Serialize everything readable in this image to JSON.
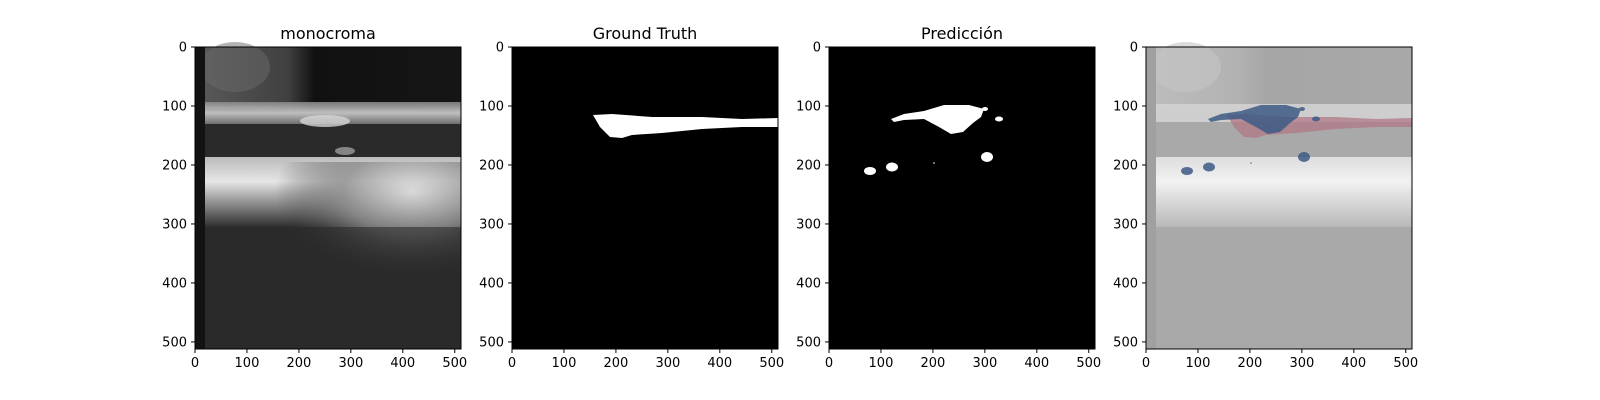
{
  "figure": {
    "panels": [
      {
        "title": "monocroma",
        "x_ticks": [
          "0",
          "100",
          "200",
          "300",
          "400",
          "500"
        ],
        "y_ticks": [
          "0",
          "100",
          "200",
          "300",
          "400",
          "500"
        ]
      },
      {
        "title": "Ground Truth",
        "x_ticks": [
          "0",
          "100",
          "200",
          "300",
          "400",
          "500"
        ],
        "y_ticks": [
          "0",
          "100",
          "200",
          "300",
          "400",
          "500"
        ]
      },
      {
        "title": "Predicción",
        "x_ticks": [
          "0",
          "100",
          "200",
          "300",
          "400",
          "500"
        ],
        "y_ticks": [
          "0",
          "100",
          "200",
          "300",
          "400",
          "500"
        ]
      },
      {
        "title": "",
        "x_ticks": [
          "0",
          "100",
          "200",
          "300",
          "400",
          "500"
        ],
        "y_ticks": [
          "0",
          "100",
          "200",
          "300",
          "400",
          "500"
        ]
      }
    ],
    "colors": {
      "mask_fill": "#ffffff",
      "mask_background": "#000000",
      "overlay_prediction": "#3d5a85",
      "overlay_ground_truth": "#b07a86"
    }
  }
}
